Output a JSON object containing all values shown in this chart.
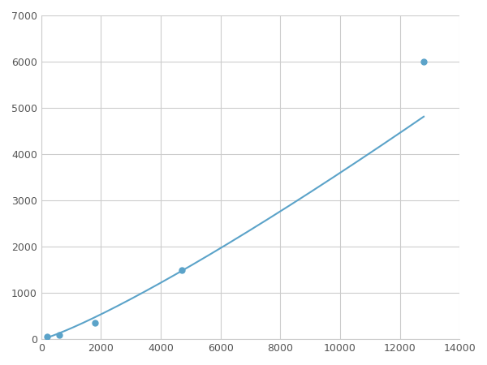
{
  "x": [
    200,
    600,
    1800,
    4700,
    12800
  ],
  "y": [
    50,
    100,
    350,
    1500,
    6000
  ],
  "line_color": "#5ba3c9",
  "marker_color": "#5ba3c9",
  "marker_size": 5,
  "linewidth": 1.5,
  "xlim": [
    0,
    14000
  ],
  "ylim": [
    0,
    7000
  ],
  "xticks": [
    0,
    2000,
    4000,
    6000,
    8000,
    10000,
    12000,
    14000
  ],
  "yticks": [
    0,
    1000,
    2000,
    3000,
    4000,
    5000,
    6000,
    7000
  ],
  "grid_color": "#cccccc",
  "grid_linewidth": 0.8,
  "background_color": "#ffffff",
  "figure_background": "#ffffff"
}
